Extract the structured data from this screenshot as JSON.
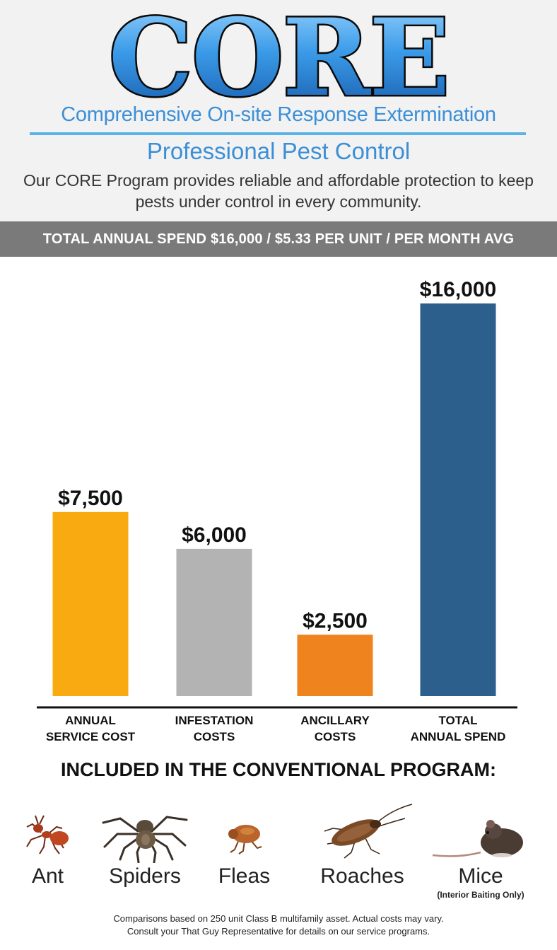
{
  "header": {
    "logo_text": "CORE",
    "subtitle": "Comprehensive On-site Response Extermination",
    "tagline": "Professional Pest Control",
    "description": "Our CORE Program provides reliable and affordable protection to keep pests under control in every community."
  },
  "banner": {
    "text": "TOTAL ANNUAL SPEND $16,000 / $5.33 PER UNIT / PER MONTH AVG"
  },
  "chart_data": {
    "type": "bar",
    "title": "",
    "xlabel": "",
    "ylabel": "",
    "ylim": [
      0,
      16000
    ],
    "grid": false,
    "categories": [
      [
        "ANNUAL",
        "SERVICE COST"
      ],
      [
        "INFESTATION",
        "COSTS"
      ],
      [
        "ANCILLARY",
        "COSTS"
      ],
      [
        "TOTAL",
        "ANNUAL SPEND"
      ]
    ],
    "values": [
      7500,
      6000,
      2500,
      16000
    ],
    "value_labels": [
      "$7,500",
      "$6,000",
      "$2,500",
      "$16,000"
    ],
    "colors": [
      "#f9aa11",
      "#b3b3b3",
      "#ef831e",
      "#2c5f8c"
    ]
  },
  "pests": {
    "heading": "INCLUDED IN THE CONVENTIONAL PROGRAM:",
    "items": [
      {
        "name": "Ant",
        "icon": "ant-icon"
      },
      {
        "name": "Spiders",
        "icon": "spider-icon"
      },
      {
        "name": "Fleas",
        "icon": "flea-icon"
      },
      {
        "name": "Roaches",
        "icon": "roach-icon"
      },
      {
        "name": "Mice",
        "icon": "mouse-icon"
      }
    ],
    "mice_note": "(Interior Baiting Only)"
  },
  "footer": {
    "line1": "Comparisons based on 250 unit Class B multifamily asset. Actual costs may vary.",
    "line2": "Consult your That Guy Representative for details on our service programs."
  },
  "colors": {
    "accent_blue": "#3b8fd6",
    "rule_blue": "#5ab3e6",
    "banner_gray": "#7a7a7a"
  }
}
